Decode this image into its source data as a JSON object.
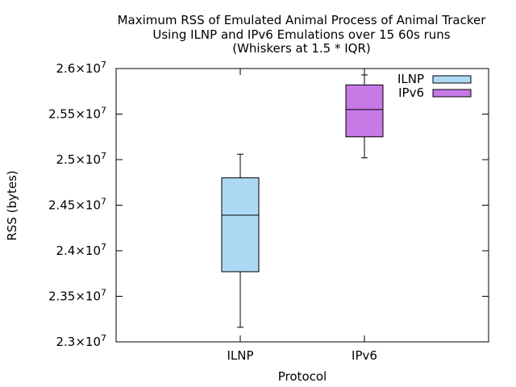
{
  "chart_data": {
    "type": "boxplot",
    "title": {
      "line1": "Maximum RSS of Emulated Animal Process of Animal Tracker",
      "line2": "Using ILNP and IPv6 Emulations over 15 60s runs",
      "line3": "(Whiskers at 1.5 * IQR)"
    },
    "xlabel": "Protocol",
    "ylabel": "RSS (bytes)",
    "ylim": [
      23000000,
      26000000
    ],
    "y_ticks": [
      {
        "value": 23000000,
        "mantissa": "2.3",
        "exp": "7"
      },
      {
        "value": 23500000,
        "mantissa": "2.35",
        "exp": "7"
      },
      {
        "value": 24000000,
        "mantissa": "2.4",
        "exp": "7"
      },
      {
        "value": 24500000,
        "mantissa": "2.45",
        "exp": "7"
      },
      {
        "value": 25000000,
        "mantissa": "2.5",
        "exp": "7"
      },
      {
        "value": 25500000,
        "mantissa": "2.55",
        "exp": "7"
      },
      {
        "value": 26000000,
        "mantissa": "2.6",
        "exp": "7"
      }
    ],
    "y_tick_times": "×10",
    "categories": [
      "ILNP",
      "IPv6"
    ],
    "legend_position": "top-right",
    "grid": false,
    "series": [
      {
        "name": "ILNP",
        "color": "#acdaf4",
        "min": 23160000,
        "q1": 23770000,
        "median": 24390000,
        "q3": 24800000,
        "max": 25060000
      },
      {
        "name": "IPv6",
        "color": "#c779e6",
        "min": 25020000,
        "q1": 25250000,
        "median": 25550000,
        "q3": 25820000,
        "max": 25930000
      }
    ]
  }
}
